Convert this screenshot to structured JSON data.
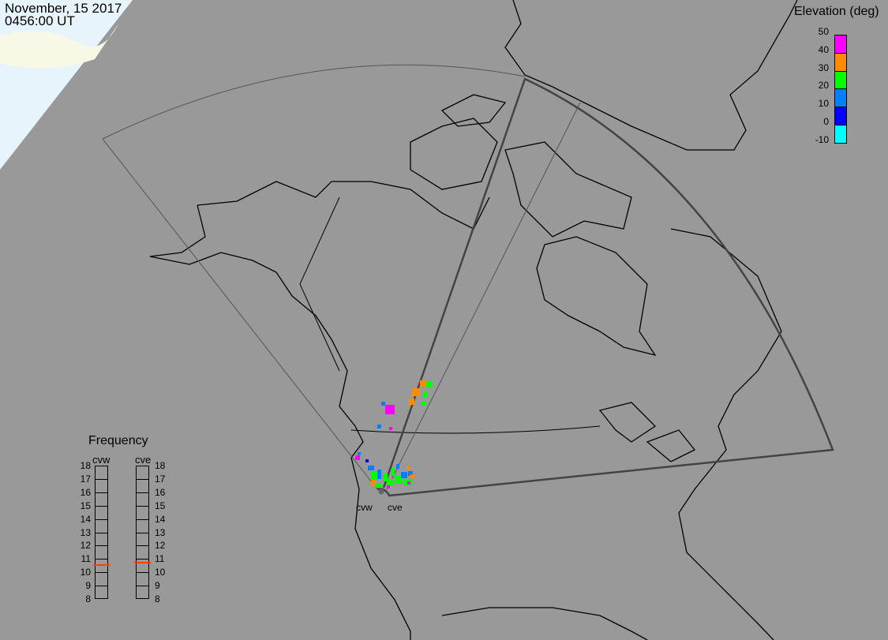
{
  "header": {
    "date": "November, 15 2017",
    "time": "0456:00 UT"
  },
  "elevation_legend": {
    "title": "Elevation (deg)",
    "ticks": [
      "50",
      "40",
      "30",
      "20",
      "10",
      "0",
      "-10"
    ],
    "colors": [
      "#ff00ff",
      "#ff8c00",
      "#00ff00",
      "#0080ff",
      "#0000ff",
      "#00ffff"
    ]
  },
  "frequency": {
    "title": "Frequency",
    "radars": [
      "cvw",
      "cve"
    ],
    "ticks": [
      "18",
      "17",
      "16",
      "15",
      "14",
      "13",
      "12",
      "11",
      "10",
      "9",
      "8"
    ],
    "values_mhz": {
      "cvw": 10.6,
      "cve": 10.8
    },
    "marker_color": "#ff4000"
  },
  "sites": {
    "west": "cvw",
    "east": "cve"
  },
  "colors": {
    "background": "#999999",
    "daylight": "#e8f4fc",
    "coast": "#000000"
  }
}
